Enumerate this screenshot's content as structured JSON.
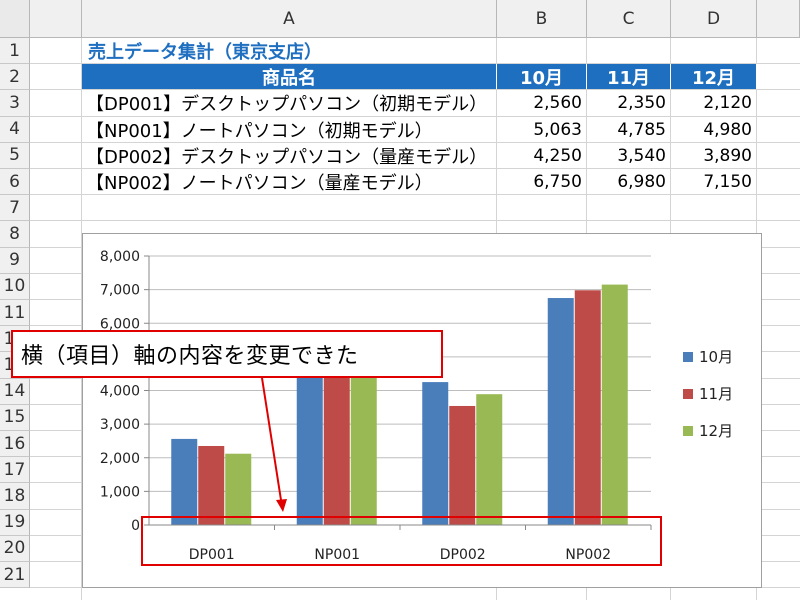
{
  "sheet": {
    "columns": [
      "A",
      "B",
      "C",
      "D"
    ],
    "rows": [
      "1",
      "2",
      "3",
      "4",
      "5",
      "6",
      "7",
      "8",
      "9",
      "10",
      "11",
      "12",
      "13",
      "14",
      "15",
      "16",
      "17",
      "18",
      "19",
      "20",
      "21"
    ],
    "title": "売上データ集計（東京支店）",
    "headers": [
      "商品名",
      "10月",
      "11月",
      "12月"
    ],
    "data": [
      {
        "name": "【DP001】デスクトップパソコン（初期モデル）",
        "values": [
          "2,560",
          "2,350",
          "2,120"
        ]
      },
      {
        "name": "【NP001】ノートパソコン（初期モデル）",
        "values": [
          "5,063",
          "4,785",
          "4,980"
        ]
      },
      {
        "name": "【DP002】デスクトップパソコン（量産モデル）",
        "values": [
          "4,250",
          "3,540",
          "3,890"
        ]
      },
      {
        "name": "【NP002】ノートパソコン（量産モデル）",
        "values": [
          "6,750",
          "6,980",
          "7,150"
        ]
      }
    ]
  },
  "callout": {
    "text": "横（項目）軸の内容を変更できた"
  },
  "colors": {
    "header_fill": "#1f6fc0",
    "title_text": "#1f6fc0",
    "highlight": "#e00000"
  },
  "chart_data": {
    "type": "bar",
    "categories": [
      "DP001",
      "NP001",
      "DP002",
      "NP002"
    ],
    "series": [
      {
        "name": "10月",
        "values": [
          2560,
          5063,
          4250,
          6750
        ],
        "color": "#4a7ebb"
      },
      {
        "name": "11月",
        "values": [
          2350,
          4785,
          3540,
          6980
        ],
        "color": "#be4b48"
      },
      {
        "name": "12月",
        "values": [
          2120,
          4980,
          3890,
          7150
        ],
        "color": "#98b954"
      }
    ],
    "ylim": [
      0,
      8000
    ],
    "yticks": [
      "0",
      "1,000",
      "2,000",
      "3,000",
      "4,000",
      "5,000",
      "6,000",
      "7,000",
      "8,000"
    ],
    "grid": true,
    "legend": "right"
  }
}
